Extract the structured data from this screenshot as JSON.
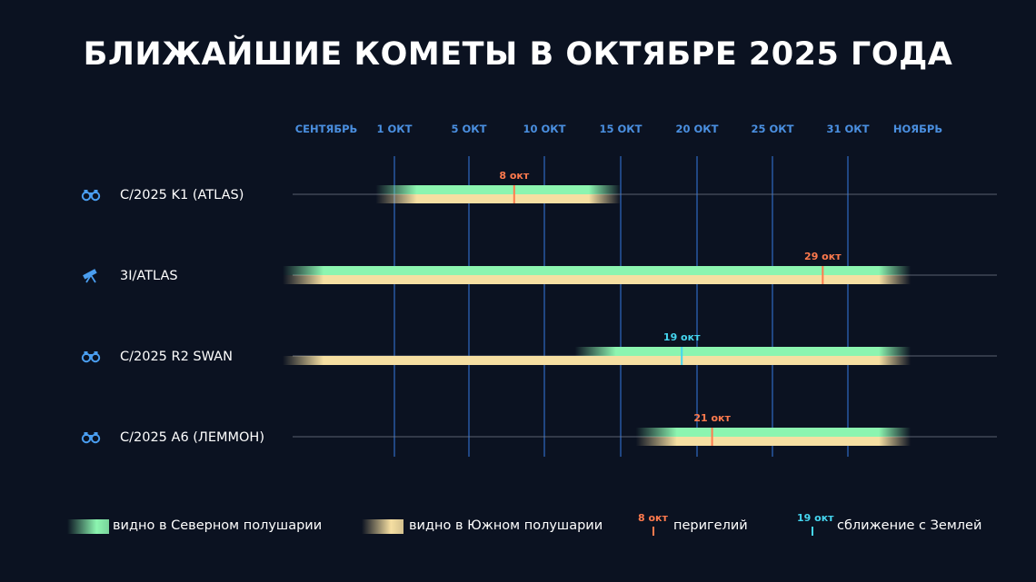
{
  "title": "БЛИЖАЙШИЕ КОМЕТЫ В ОКТЯБРЕ 2025 ГОДА",
  "colors": {
    "background": "#0b1221",
    "axis_label": "#4a8fe0",
    "gridline": "#2f6bc7",
    "north": "#8cf5b0",
    "south": "#f6dfa2",
    "perihelion": "#ff7a4d",
    "approach": "#45d6f0"
  },
  "chart_data": {
    "type": "timeline",
    "x_axis_ticks": [
      "СЕНТЯБРЬ",
      "1 ОКТ",
      "5 ОКТ",
      "10 ОКТ",
      "15 ОКТ",
      "20 ОКТ",
      "25 ОКТ",
      "31 ОКТ",
      "НОЯБРЬ"
    ],
    "gridlines_at": [
      "1 ОКТ",
      "5 ОКТ",
      "10 ОКТ",
      "15 ОКТ",
      "20 ОКТ",
      "25 ОКТ",
      "31 ОКТ"
    ],
    "comets": [
      {
        "name": "C/2025 K1 (ATLAS)",
        "icon": "binoculars-icon",
        "north": [
          "2025-09-30",
          "2025-10-15"
        ],
        "south": [
          "2025-09-30",
          "2025-10-15"
        ],
        "marker": {
          "type": "perihelion",
          "date": "2025-10-08",
          "label": "8 окт"
        }
      },
      {
        "name": "3I/ATLAS",
        "icon": "telescope-icon",
        "north": [
          "2025-09-25",
          "2025-11-05"
        ],
        "south": [
          "2025-09-25",
          "2025-11-05"
        ],
        "marker": {
          "type": "perihelion",
          "date": "2025-10-29",
          "label": "29 окт"
        }
      },
      {
        "name": "C/2025 R2 SWAN",
        "icon": "binoculars-icon",
        "north": [
          "2025-10-12",
          "2025-11-05"
        ],
        "south": [
          "2025-09-25",
          "2025-11-05"
        ],
        "marker": {
          "type": "approach",
          "date": "2025-10-19",
          "label": "19 окт"
        }
      },
      {
        "name": "C/2025 A6 (ЛЕММОН)",
        "icon": "binoculars-icon",
        "north": [
          "2025-10-16",
          "2025-11-05"
        ],
        "south": [
          "2025-10-16",
          "2025-11-05"
        ],
        "marker": {
          "type": "perihelion",
          "date": "2025-10-21",
          "label": "21 окт"
        }
      }
    ]
  },
  "legend": {
    "north": "видно в Северном полушарии",
    "south": "видно в Южном полушарии",
    "perihelion_date": "8 окт",
    "perihelion": "перигелий",
    "approach_date": "19 окт",
    "approach": "сближение с Землей"
  }
}
